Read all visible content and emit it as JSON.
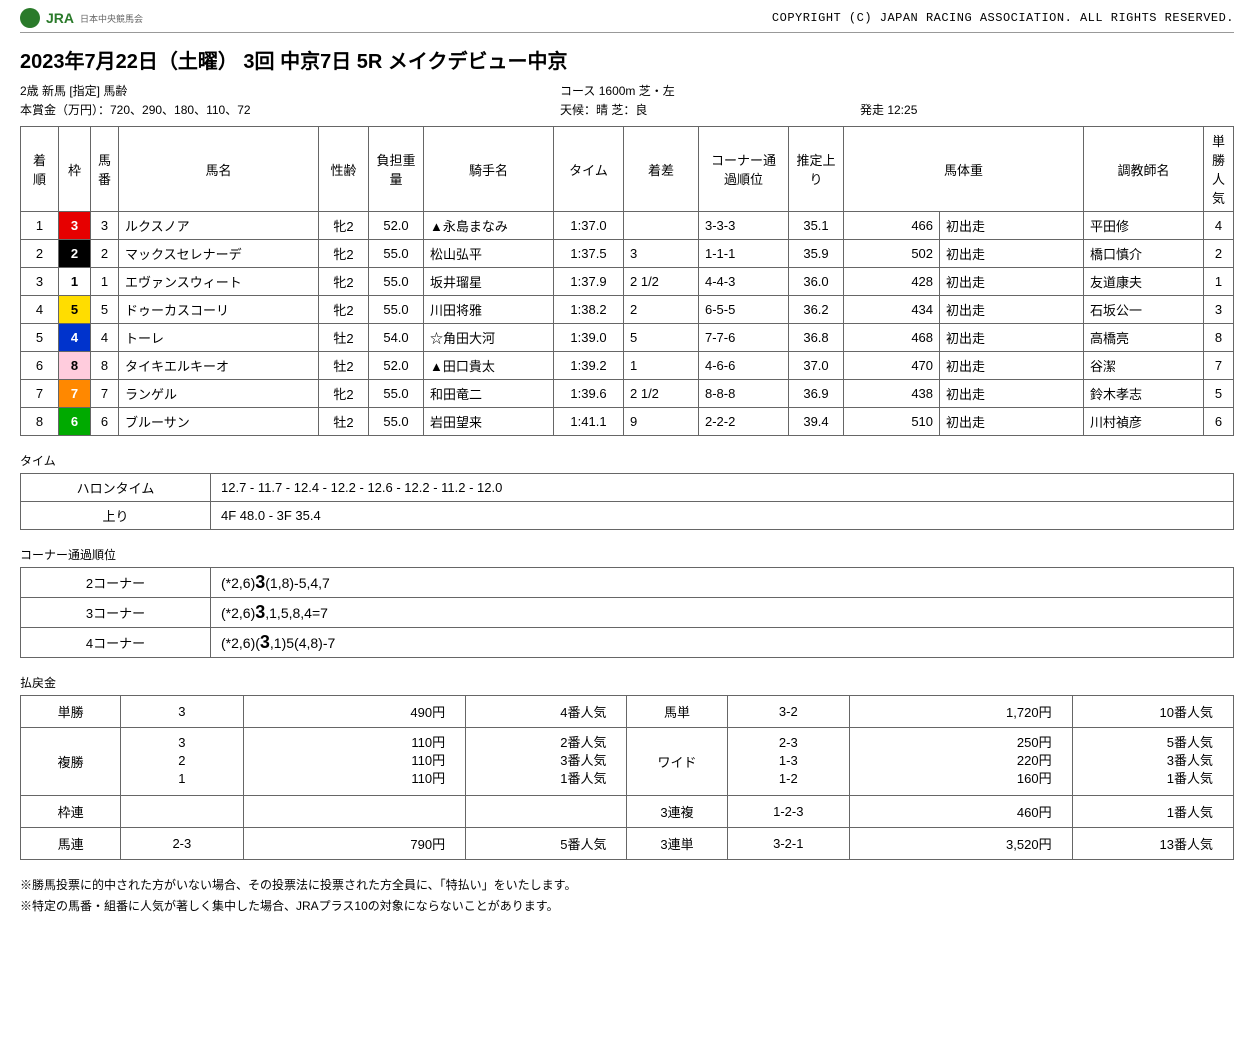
{
  "header": {
    "logo_main": "JRA",
    "logo_sub": "日本中央競馬会",
    "copyright": "COPYRIGHT (C) JAPAN RACING ASSOCIATION. ALL RIGHTS RESERVED."
  },
  "title": "2023年7月22日（土曜） 3回 中京7日 5R メイクデビュー中京",
  "meta": {
    "class": "2歳 新馬 [指定] 馬齢",
    "course": "コース 1600m 芝・左",
    "prize": "本賞金（万円）：720、290、180、110、72",
    "weather": "天候：晴 芝：良",
    "start": "発走 12:25"
  },
  "columns": [
    "着順",
    "枠",
    "馬番",
    "馬名",
    "性齢",
    "負担重量",
    "騎手名",
    "タイム",
    "着差",
    "コーナー通過順位",
    "推定上り",
    "馬体重",
    "",
    "調教師名",
    "単勝人気"
  ],
  "rows": [
    {
      "rank": "1",
      "waku": "3",
      "wakuClass": "waku3",
      "num": "3",
      "name": "ルクスノア",
      "sex": "牝2",
      "wt": "52.0",
      "jockey": "▲永島まなみ",
      "time": "1:37.0",
      "margin": "",
      "corner": "3-3-3",
      "agari": "35.1",
      "bw": "466",
      "bwd": "初出走",
      "trainer": "平田修",
      "pop": "4"
    },
    {
      "rank": "2",
      "waku": "2",
      "wakuClass": "waku2",
      "num": "2",
      "name": "マックスセレナーデ",
      "sex": "牝2",
      "wt": "55.0",
      "jockey": "松山弘平",
      "time": "1:37.5",
      "margin": "3",
      "corner": "1-1-1",
      "agari": "35.9",
      "bw": "502",
      "bwd": "初出走",
      "trainer": "橋口慎介",
      "pop": "2"
    },
    {
      "rank": "3",
      "waku": "1",
      "wakuClass": "waku1",
      "num": "1",
      "name": "エヴァンスウィート",
      "sex": "牝2",
      "wt": "55.0",
      "jockey": "坂井瑠星",
      "time": "1:37.9",
      "margin": "2 1/2",
      "corner": "4-4-3",
      "agari": "36.0",
      "bw": "428",
      "bwd": "初出走",
      "trainer": "友道康夫",
      "pop": "1"
    },
    {
      "rank": "4",
      "waku": "5",
      "wakuClass": "waku5",
      "num": "5",
      "name": "ドゥーカスコーリ",
      "sex": "牝2",
      "wt": "55.0",
      "jockey": "川田将雅",
      "time": "1:38.2",
      "margin": "2",
      "corner": "6-5-5",
      "agari": "36.2",
      "bw": "434",
      "bwd": "初出走",
      "trainer": "石坂公一",
      "pop": "3"
    },
    {
      "rank": "5",
      "waku": "4",
      "wakuClass": "waku4",
      "num": "4",
      "name": "トーレ",
      "sex": "牡2",
      "wt": "54.0",
      "jockey": "☆角田大河",
      "time": "1:39.0",
      "margin": "5",
      "corner": "7-7-6",
      "agari": "36.8",
      "bw": "468",
      "bwd": "初出走",
      "trainer": "高橋亮",
      "pop": "8"
    },
    {
      "rank": "6",
      "waku": "8",
      "wakuClass": "waku8",
      "num": "8",
      "name": "タイキエルキーオ",
      "sex": "牡2",
      "wt": "52.0",
      "jockey": "▲田口貴太",
      "time": "1:39.2",
      "margin": "1",
      "corner": "4-6-6",
      "agari": "37.0",
      "bw": "470",
      "bwd": "初出走",
      "trainer": "谷潔",
      "pop": "7"
    },
    {
      "rank": "7",
      "waku": "7",
      "wakuClass": "waku7",
      "num": "7",
      "name": "ランゲル",
      "sex": "牝2",
      "wt": "55.0",
      "jockey": "和田竜二",
      "time": "1:39.6",
      "margin": "2 1/2",
      "corner": "8-8-8",
      "agari": "36.9",
      "bw": "438",
      "bwd": "初出走",
      "trainer": "鈴木孝志",
      "pop": "5"
    },
    {
      "rank": "8",
      "waku": "6",
      "wakuClass": "waku6",
      "num": "6",
      "name": "ブルーサン",
      "sex": "牡2",
      "wt": "55.0",
      "jockey": "岩田望来",
      "time": "1:41.1",
      "margin": "9",
      "corner": "2-2-2",
      "agari": "39.4",
      "bw": "510",
      "bwd": "初出走",
      "trainer": "川村禎彦",
      "pop": "6"
    }
  ],
  "time_section": {
    "label": "タイム",
    "halon_label": "ハロンタイム",
    "halon": "12.7 - 11.7 - 12.4 - 12.2 - 12.6 - 12.2 - 11.2 - 12.0",
    "agari_label": "上り",
    "agari": "4F 48.0 - 3F 35.4"
  },
  "corner_section": {
    "label": "コーナー通過順位",
    "rows": [
      {
        "label": "2コーナー",
        "pre": "(*2,6)",
        "big": "3",
        "post": "(1,8)-5,4,7"
      },
      {
        "label": "3コーナー",
        "pre": "(*2,6)",
        "big": "3",
        "post": ",1,5,8,4=7"
      },
      {
        "label": "4コーナー",
        "pre": "(*2,6)(",
        "big": "3",
        "post": ",1)5(4,8)-7"
      }
    ]
  },
  "payout_section": {
    "label": "払戻金",
    "left": [
      {
        "type": "単勝",
        "combo": "3",
        "yen": "490円",
        "pop": "4番人気"
      },
      {
        "type": "複勝",
        "combo": "3\n2\n1",
        "yen": "110円\n110円\n110円",
        "pop": "2番人気\n3番人気\n1番人気"
      },
      {
        "type": "枠連",
        "combo": "",
        "yen": "",
        "pop": ""
      },
      {
        "type": "馬連",
        "combo": "2-3",
        "yen": "790円",
        "pop": "5番人気"
      }
    ],
    "right": [
      {
        "type": "馬単",
        "combo": "3-2",
        "yen": "1,720円",
        "pop": "10番人気"
      },
      {
        "type": "ワイド",
        "combo": "2-3\n1-3\n1-2",
        "yen": "250円\n220円\n160円",
        "pop": "5番人気\n3番人気\n1番人気"
      },
      {
        "type": "3連複",
        "combo": "1-2-3",
        "yen": "460円",
        "pop": "1番人気"
      },
      {
        "type": "3連単",
        "combo": "3-2-1",
        "yen": "3,520円",
        "pop": "13番人気"
      }
    ]
  },
  "footer": [
    "※勝馬投票に的中された方がいない場合、その投票法に投票された方全員に、「特払い」をいたします。",
    "※特定の馬番・組番に人気が著しく集中した場合、JRAプラス10の対象にならないことがあります。"
  ]
}
